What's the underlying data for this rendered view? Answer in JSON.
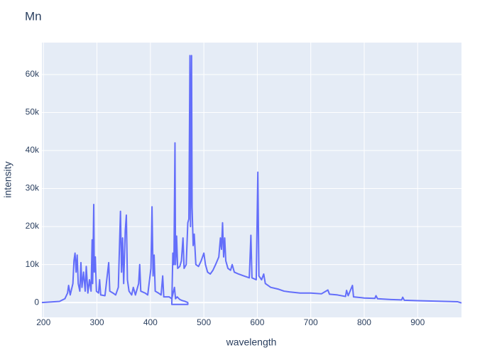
{
  "chart_data": {
    "type": "line",
    "title": "Mn",
    "x_label": "wavelength",
    "y_label": "intensity",
    "xlim": [
      197,
      982
    ],
    "xticks": [
      200,
      300,
      400,
      500,
      600,
      700,
      800,
      900
    ],
    "ylim": [
      -3900,
      68400
    ],
    "yticks": [
      0,
      {
        "value": 10000,
        "label": "10k"
      },
      {
        "value": 20000,
        "label": "20k"
      },
      {
        "value": 30000,
        "label": "30k"
      },
      {
        "value": 40000,
        "label": "40k"
      },
      {
        "value": 50000,
        "label": "50k"
      },
      {
        "value": 60000,
        "label": "60k"
      }
    ],
    "grid": true,
    "series": [
      {
        "name": "intensity",
        "color": "#636efa",
        "x": [
          197,
          230,
          240,
          245,
          247,
          250,
          255,
          257,
          259,
          261,
          263,
          265,
          268,
          270,
          272,
          275,
          278,
          280,
          283,
          286,
          289,
          291,
          292,
          294,
          295,
          297,
          299,
          303,
          305,
          307,
          315,
          322,
          324,
          330,
          335,
          340,
          344,
          346,
          348,
          350,
          353,
          355,
          357,
          360,
          365,
          368,
          372,
          378,
          380,
          382,
          390,
          395,
          401,
          403,
          405,
          407,
          409,
          415,
          420,
          423,
          425,
          435,
          440,
          445,
          447,
          450,
          455,
          460,
          465,
          470,
          470,
          440,
          442,
          444,
          446,
          447,
          449,
          451,
          455,
          458,
          461,
          463,
          467,
          470,
          472,
          474,
          475,
          477,
          478,
          480,
          482,
          485,
          490,
          495,
          500,
          503,
          507,
          512,
          517,
          522,
          528,
          531,
          533,
          535,
          537,
          539,
          541,
          545,
          550,
          553,
          557,
          565,
          575,
          585,
          588,
          590,
          598,
          601,
          603,
          608,
          612,
          615,
          625,
          640,
          650,
          660,
          680,
          700,
          720,
          732,
          735,
          750,
          765,
          767,
          770,
          778,
          780,
          800,
          820,
          822,
          825,
          850,
          870,
          872,
          875,
          900,
          950,
          975,
          982
        ],
        "values": [
          0,
          300,
          1000,
          2500,
          4500,
          2000,
          5000,
          11000,
          13000,
          8000,
          12500,
          5000,
          3000,
          10500,
          4000,
          8000,
          3000,
          9500,
          2500,
          6000,
          3000,
          16500,
          5000,
          25800,
          8000,
          12000,
          3000,
          2500,
          6000,
          2000,
          1800,
          10500,
          3000,
          2500,
          2000,
          4000,
          24000,
          8000,
          17000,
          5000,
          19000,
          23000,
          6000,
          3000,
          2000,
          4000,
          2000,
          5000,
          10000,
          3000,
          2500,
          2000,
          9000,
          25200,
          7000,
          12500,
          3000,
          2500,
          2000,
          7000,
          1500,
          1500,
          1000,
          4000,
          1000,
          1500,
          800,
          500,
          300,
          0,
          -500,
          -500,
          13000,
          10000,
          42000,
          10000,
          17500,
          9000,
          9500,
          11000,
          17000,
          9000,
          10000,
          21000,
          22000,
          65000,
          20000,
          65000,
          25000,
          15000,
          18000,
          10000,
          9500,
          11000,
          13000,
          10000,
          8000,
          7500,
          8500,
          10000,
          12000,
          17000,
          14000,
          21000,
          12000,
          17000,
          11000,
          9000,
          8500,
          10000,
          8000,
          7500,
          7000,
          6500,
          17700,
          6500,
          6000,
          34300,
          7000,
          6000,
          7500,
          5000,
          4000,
          3500,
          3000,
          2800,
          2500,
          2500,
          2300,
          3300,
          2200,
          2000,
          1600,
          3200,
          1800,
          4500,
          1500,
          1200,
          1100,
          1800,
          1000,
          800,
          700,
          1400,
          600,
          500,
          300,
          200,
          -100
        ]
      }
    ]
  }
}
